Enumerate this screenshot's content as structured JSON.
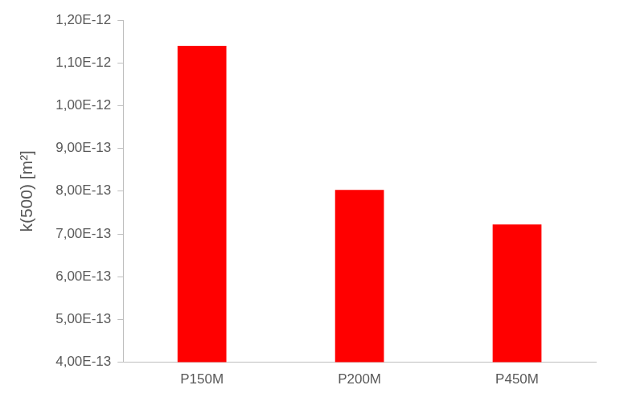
{
  "chart_data": {
    "type": "bar",
    "ylabel": "k(500) [m²]",
    "categories": [
      "P150M",
      "P200M",
      "P450M"
    ],
    "values": [
      1.14e-12,
      8.03e-13,
      7.22e-13
    ],
    "color": "#ff0000",
    "ylim": [
      4e-13,
      1.2e-12
    ],
    "yticks": [
      {
        "value": 4e-13,
        "label": "4,00E-13"
      },
      {
        "value": 5e-13,
        "label": "5,00E-13"
      },
      {
        "value": 6e-13,
        "label": "6,00E-13"
      },
      {
        "value": 7e-13,
        "label": "7,00E-13"
      },
      {
        "value": 8e-13,
        "label": "8,00E-13"
      },
      {
        "value": 9e-13,
        "label": "9,00E-13"
      },
      {
        "value": 1e-12,
        "label": "1,00E-12"
      },
      {
        "value": 1.1e-12,
        "label": "1,10E-12"
      },
      {
        "value": 1.2e-12,
        "label": "1,20E-12"
      }
    ],
    "grid": false
  }
}
